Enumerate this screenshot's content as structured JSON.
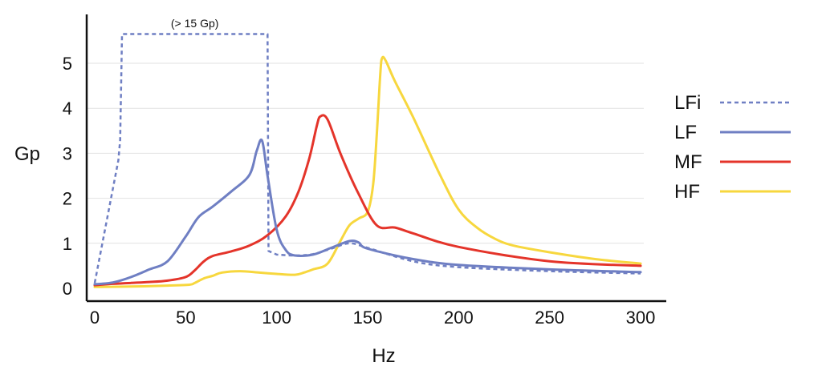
{
  "chart_data": {
    "type": "line",
    "title": "",
    "xlabel": "Hz",
    "ylabel": "Gp",
    "xlim": [
      0,
      300
    ],
    "ylim": [
      0,
      5.6
    ],
    "xticks": [
      0,
      50,
      100,
      150,
      200,
      250,
      300
    ],
    "yticks": [
      0,
      1,
      2,
      3,
      4,
      5
    ],
    "grid": "horizontal",
    "legend_position": "right",
    "annotations": [
      {
        "text": "(> 15 Gp)",
        "x": 55,
        "y": 5.9
      }
    ],
    "series": [
      {
        "name": "LFi",
        "color": "#6f7fc3",
        "style": "dotted",
        "x": [
          0,
          13,
          14,
          15,
          93,
          95,
          95.5,
          100,
          110,
          120,
          130,
          140,
          150,
          175,
          200,
          250,
          300
        ],
        "y": [
          0.12,
          2.85,
          3.3,
          5.65,
          5.65,
          5.65,
          0.83,
          0.75,
          0.73,
          0.76,
          0.88,
          1.0,
          0.9,
          0.6,
          0.47,
          0.38,
          0.33
        ]
      },
      {
        "name": "LF",
        "color": "#6f7fc3",
        "style": "solid",
        "x": [
          0,
          10,
          20,
          30,
          40,
          50,
          57,
          65,
          75,
          85,
          89,
          92,
          95,
          100,
          105,
          110,
          120,
          130,
          140,
          145,
          150,
          175,
          200,
          250,
          300
        ],
        "y": [
          0.09,
          0.13,
          0.25,
          0.42,
          0.6,
          1.15,
          1.58,
          1.82,
          2.15,
          2.52,
          3.05,
          3.28,
          2.5,
          1.3,
          0.85,
          0.73,
          0.75,
          0.9,
          1.05,
          1.02,
          0.88,
          0.65,
          0.52,
          0.42,
          0.36
        ]
      },
      {
        "name": "MF",
        "color": "#e4342a",
        "style": "solid",
        "x": [
          0,
          10,
          20,
          30,
          40,
          50,
          55,
          60,
          65,
          75,
          85,
          95,
          105,
          112,
          118,
          122,
          124,
          128,
          135,
          145,
          155,
          165,
          175,
          200,
          250,
          300
        ],
        "y": [
          0.07,
          0.1,
          0.12,
          0.14,
          0.17,
          0.25,
          0.4,
          0.6,
          0.72,
          0.82,
          0.95,
          1.18,
          1.6,
          2.15,
          2.9,
          3.6,
          3.82,
          3.75,
          3.0,
          2.1,
          1.4,
          1.35,
          1.22,
          0.92,
          0.6,
          0.5
        ]
      },
      {
        "name": "HF",
        "color": "#f7d73e",
        "style": "solid",
        "x": [
          0,
          20,
          40,
          52,
          55,
          60,
          65,
          70,
          80,
          90,
          100,
          110,
          115,
          120,
          128,
          135,
          140,
          145,
          150,
          153,
          155,
          157,
          158,
          160,
          165,
          175,
          190,
          200,
          210,
          220,
          230,
          250,
          275,
          300
        ],
        "y": [
          0.03,
          0.04,
          0.06,
          0.08,
          0.12,
          0.22,
          0.28,
          0.35,
          0.38,
          0.35,
          0.32,
          0.3,
          0.35,
          0.42,
          0.55,
          1.05,
          1.4,
          1.55,
          1.7,
          2.3,
          3.4,
          4.8,
          5.12,
          5.05,
          4.6,
          3.8,
          2.5,
          1.75,
          1.35,
          1.1,
          0.95,
          0.8,
          0.65,
          0.55
        ]
      }
    ]
  }
}
